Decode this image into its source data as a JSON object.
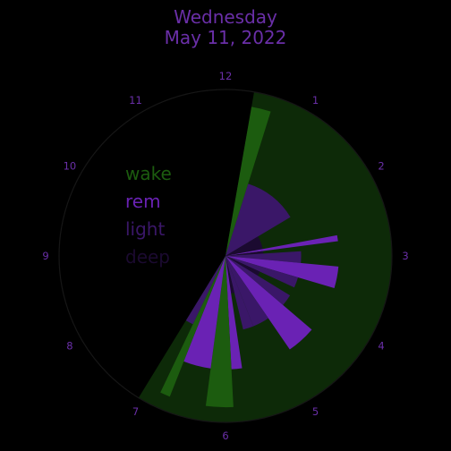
{
  "title": {
    "line1": "Wednesday",
    "line2": "May 11, 2022"
  },
  "colors": {
    "title": "#6a2fa8",
    "hour_labels": "#6a2fa8",
    "face_ring": "#161616",
    "background": "#000000"
  },
  "chart_data": {
    "type": "polar-bar",
    "clock_hours": 12,
    "hour_labels": [
      "12",
      "1",
      "2",
      "3",
      "4",
      "5",
      "6",
      "7",
      "8",
      "9",
      "10",
      "11"
    ],
    "legend_position": "left-center",
    "categories": [
      {
        "name": "wake",
        "color": "#1c5c0f",
        "level": 4
      },
      {
        "name": "rem",
        "color": "#6a22b4",
        "level": 3
      },
      {
        "name": "light",
        "color": "#3a1768",
        "level": 2
      },
      {
        "name": "deep",
        "color": "#1b0a30",
        "level": 1
      }
    ],
    "background_wake_band": {
      "start": 0.33,
      "end": 7.05,
      "level": 4.4,
      "color": "#0d2a08"
    },
    "segments": [
      {
        "start": 0.33,
        "end": 0.58,
        "stage": "wake"
      },
      {
        "start": 0.58,
        "end": 1.97,
        "stage": "light"
      },
      {
        "start": 1.97,
        "end": 2.65,
        "stage": "deep"
      },
      {
        "start": 2.65,
        "end": 2.75,
        "stage": "rem"
      },
      {
        "start": 2.75,
        "end": 2.88,
        "stage": "deep"
      },
      {
        "start": 2.88,
        "end": 3.18,
        "stage": "light"
      },
      {
        "start": 3.18,
        "end": 3.55,
        "stage": "rem"
      },
      {
        "start": 3.55,
        "end": 3.82,
        "stage": "light"
      },
      {
        "start": 3.82,
        "end": 4.05,
        "stage": "deep"
      },
      {
        "start": 4.05,
        "end": 4.35,
        "stage": "light"
      },
      {
        "start": 4.35,
        "end": 4.85,
        "stage": "rem"
      },
      {
        "start": 4.85,
        "end": 5.28,
        "stage": "light"
      },
      {
        "start": 5.28,
        "end": 5.55,
        "stage": "light"
      },
      {
        "start": 5.55,
        "end": 5.72,
        "stage": "deep"
      },
      {
        "start": 5.72,
        "end": 5.9,
        "stage": "rem"
      },
      {
        "start": 5.9,
        "end": 6.25,
        "stage": "wake"
      },
      {
        "start": 6.25,
        "end": 6.72,
        "stage": "rem"
      },
      {
        "start": 6.72,
        "end": 6.85,
        "stage": "wake"
      },
      {
        "start": 6.85,
        "end": 7.05,
        "stage": "light"
      }
    ]
  }
}
